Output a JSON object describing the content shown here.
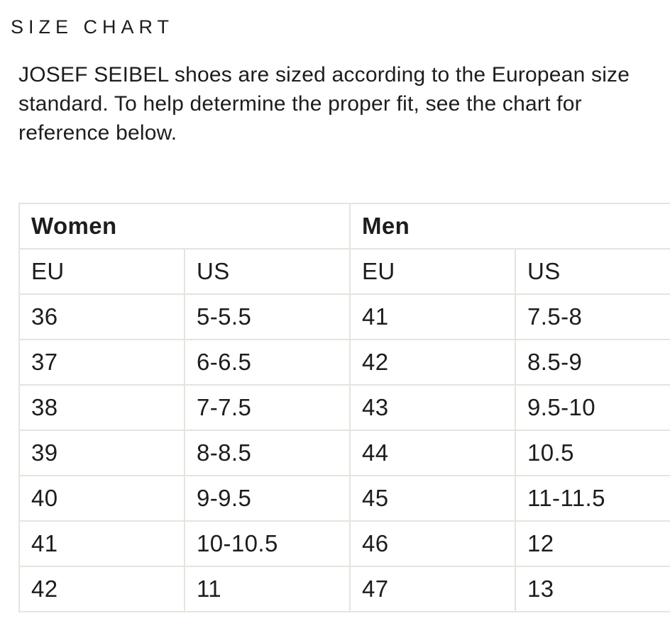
{
  "page": {
    "title": "SIZE CHART",
    "intro_lines": [
      "JOSEF SEIBEL shoes are sized according to the European size",
      "standard. To help determine the proper fit, see the chart for",
      "reference below."
    ]
  },
  "size_table": {
    "groups": [
      {
        "label": "Women"
      },
      {
        "label": "Men"
      }
    ],
    "columns": [
      "EU",
      "US",
      "EU",
      "US"
    ],
    "rows": [
      {
        "cells": [
          "36",
          "5-5.5",
          "41",
          "7.5-8"
        ]
      },
      {
        "cells": [
          "37",
          "6-6.5",
          "42",
          "8.5-9"
        ]
      },
      {
        "cells": [
          "38",
          "7-7.5",
          "43",
          "9.5-10"
        ]
      },
      {
        "cells": [
          "39",
          "8-8.5",
          "44",
          "10.5"
        ]
      },
      {
        "cells": [
          "40",
          "9-9.5",
          "45",
          "11-11.5"
        ]
      },
      {
        "cells": [
          "41",
          "10-10.5",
          "46",
          "12"
        ]
      },
      {
        "cells": [
          "42",
          "11",
          "47",
          "13"
        ]
      }
    ]
  },
  "colors": {
    "background": "#ffffff",
    "text": "#1d1d1d",
    "table_border": "#e6e4dd"
  }
}
